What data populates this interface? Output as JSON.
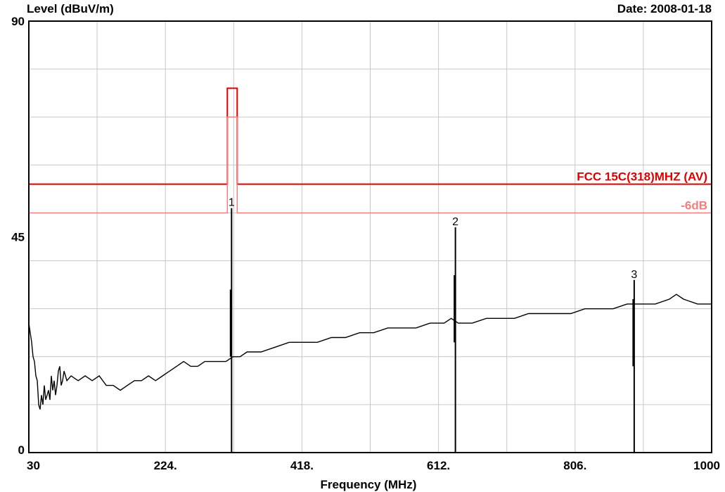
{
  "chart_data": {
    "type": "line",
    "ylabel": "Level (dBuV/m)",
    "date_label": "Date: 2008-01-18",
    "xlabel": "Frequency (MHz)",
    "xlim": [
      30,
      1000
    ],
    "ylim": [
      0,
      90
    ],
    "x_ticks": [
      {
        "value": 30,
        "label": "30"
      },
      {
        "value": 224,
        "label": "224."
      },
      {
        "value": 418,
        "label": "418."
      },
      {
        "value": 612,
        "label": "612."
      },
      {
        "value": 806,
        "label": "806."
      },
      {
        "value": 1000,
        "label": "1000"
      }
    ],
    "y_ticks": [
      {
        "value": 0,
        "label": "0"
      },
      {
        "value": 45,
        "label": "45"
      },
      {
        "value": 90,
        "label": "90"
      }
    ],
    "grid": true,
    "limit_lines": [
      {
        "name": "FCC 15C(318)MHZ (AV)",
        "color": "#dd0000",
        "level": 56,
        "band": {
          "x0": 312,
          "x1": 326,
          "level": 76
        }
      },
      {
        "name": "-6dB",
        "color": "#f08080",
        "level": 50,
        "band": {
          "x0": 312,
          "x1": 326,
          "level": 70
        }
      }
    ],
    "series": [
      {
        "color": "#000000",
        "x": [
          30,
          32,
          34,
          36,
          38,
          40,
          42,
          44,
          46,
          48,
          50,
          52,
          54,
          56,
          58,
          60,
          62,
          64,
          66,
          68,
          70,
          72,
          74,
          76,
          78,
          80,
          82,
          84,
          90,
          100,
          110,
          120,
          130,
          140,
          150,
          160,
          170,
          180,
          190,
          200,
          210,
          220,
          230,
          240,
          250,
          260,
          270,
          280,
          290,
          300,
          310,
          320,
          330,
          340,
          360,
          380,
          400,
          420,
          440,
          460,
          480,
          500,
          520,
          540,
          560,
          580,
          600,
          620,
          630,
          640,
          660,
          680,
          700,
          720,
          740,
          760,
          780,
          800,
          820,
          840,
          860,
          880,
          900,
          920,
          940,
          950,
          960,
          980,
          1000
        ],
        "y": [
          27,
          25,
          23,
          20,
          19,
          16,
          15,
          10,
          9,
          12,
          10,
          14,
          11,
          12,
          13,
          11,
          16,
          13,
          15,
          12,
          14,
          17,
          18,
          14,
          15,
          17,
          16,
          15,
          16,
          15,
          16,
          15,
          16,
          14,
          14,
          13,
          14,
          15,
          15,
          16,
          15,
          16,
          17,
          18,
          19,
          18,
          18,
          19,
          19,
          19,
          19,
          20,
          20,
          21,
          21,
          22,
          23,
          23,
          23,
          24,
          24,
          25,
          25,
          26,
          26,
          26,
          27,
          27,
          28,
          27,
          27,
          28,
          28,
          28,
          29,
          29,
          29,
          29,
          30,
          30,
          30,
          31,
          31,
          31,
          32,
          33,
          32,
          31,
          31
        ]
      }
    ],
    "spikes": [
      {
        "x": 318,
        "y": 0,
        "top": 51,
        "label": "1",
        "base_peak": 34
      },
      {
        "x": 636,
        "y": 0,
        "top": 47,
        "label": "2",
        "base_peak": 37
      },
      {
        "x": 890,
        "y": 0,
        "top": 36,
        "label": "3",
        "base_peak": 32
      }
    ]
  }
}
